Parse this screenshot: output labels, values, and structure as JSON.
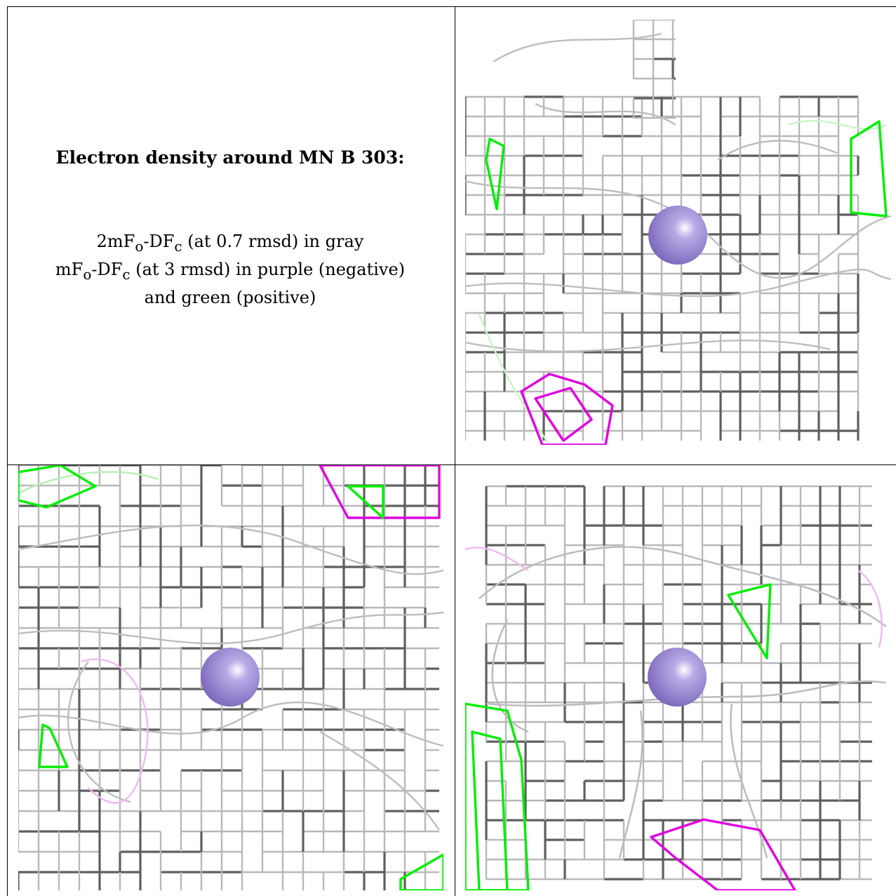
{
  "caption": {
    "title": "Electron density around MN B 303:",
    "line1": "2mF",
    "line1_sub_a": "o",
    "line1_mid": "-DF",
    "line1_sub_b": "c",
    "line1_rest": " (at 0.7 rmsd) in gray",
    "line2": "mF",
    "line2_sub_a": "o",
    "line2_mid": "-DF",
    "line2_sub_b": "c",
    "line2_rest": " (at 3 rmsd) in purple (negative)",
    "line3": "and green (positive)"
  },
  "colors": {
    "gray_map": "#9a9a9a",
    "gray_dark": "#5f5f5f",
    "negative_map": "#e000e0",
    "positive_map": "#00ee00",
    "atom": "#9a88d4"
  },
  "panels": [
    {
      "name": "view-top-right",
      "atom": "MN"
    },
    {
      "name": "view-bottom-left",
      "atom": "MN"
    },
    {
      "name": "view-bottom-right",
      "atom": "MN"
    }
  ]
}
